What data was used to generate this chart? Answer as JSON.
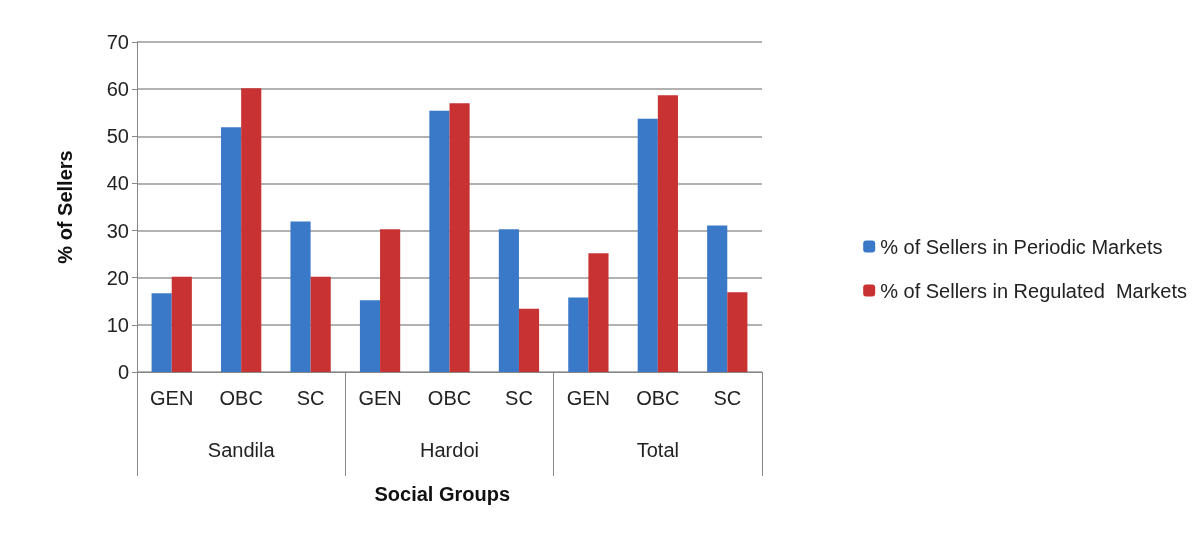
{
  "chart_data": {
    "type": "bar",
    "categories": [
      "GEN",
      "OBC",
      "SC",
      "GEN",
      "OBC",
      "SC",
      "GEN",
      "OBC",
      "SC"
    ],
    "series": [
      {
        "name": "% of Sellers in Periodic Markets",
        "color": "#3a78c8",
        "values": [
          16.7,
          51.9,
          31.9,
          15.2,
          55.4,
          30.3,
          15.8,
          53.7,
          31.1
        ]
      },
      {
        "name": "% of Sellers in Regulated  Markets",
        "color": "#c83232",
        "values": [
          20.2,
          60.2,
          20.2,
          30.3,
          57.0,
          13.4,
          25.2,
          58.7,
          16.9
        ]
      }
    ],
    "annotations": [
      "Sandila",
      "Hardoi",
      "Total"
    ],
    "xlabel": "Social Groups",
    "ylabel": "% of Sellers",
    "ylim": [
      0,
      70
    ],
    "yticks": [
      0,
      10,
      20,
      30,
      40,
      50,
      60,
      70
    ],
    "grid": "y",
    "legend": "right"
  }
}
